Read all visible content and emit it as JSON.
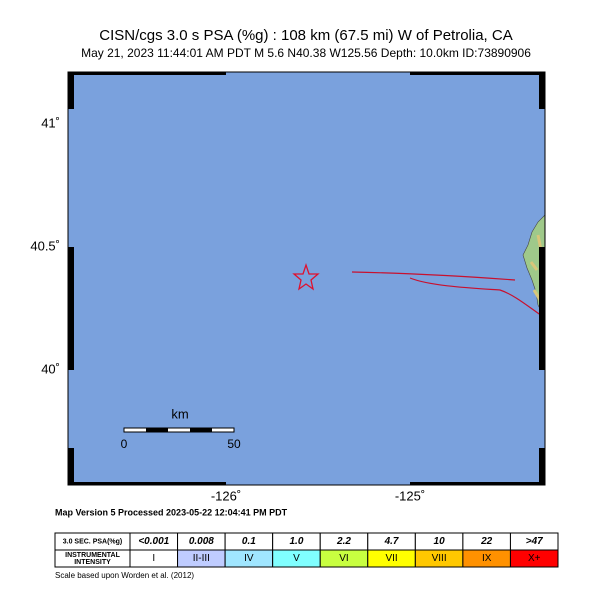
{
  "header": {
    "title": "CISN/cgs 3.0 s PSA (%g) : 108 km (67.5 mi) W of Petrolia, CA",
    "subtitle": "May 21, 2023 11:44:01 AM PDT   M 5.6   N40.38 W125.56   Depth: 10.0km   ID:73890906"
  },
  "map": {
    "lat_labels": [
      "41˚",
      "40.5˚",
      "40˚"
    ],
    "lon_labels": [
      "-126˚",
      "-125˚"
    ],
    "scale_bar": {
      "unit": "km",
      "start": "0",
      "end": "50"
    }
  },
  "version_note": "Map Version 5 Processed 2023-05-22 12:04:41 PM PDT",
  "legend": {
    "psa_label": "3.0 SEC. PSA(%g)",
    "intensity_label": [
      "INSTRUMENTAL",
      "INTENSITY"
    ],
    "columns": [
      {
        "psa": "<0.001",
        "intensity": "I",
        "color": "#ffffff"
      },
      {
        "psa": "0.008",
        "intensity": "II-III",
        "color": "#bfccff"
      },
      {
        "psa": "0.1",
        "intensity": "IV",
        "color": "#a0e6ff"
      },
      {
        "psa": "1.0",
        "intensity": "V",
        "color": "#80ffff"
      },
      {
        "psa": "2.2",
        "intensity": "VI",
        "color": "#c8ff40"
      },
      {
        "psa": "4.7",
        "intensity": "VII",
        "color": "#ffff00"
      },
      {
        "psa": "10",
        "intensity": "VIII",
        "color": "#ffc800"
      },
      {
        "psa": "22",
        "intensity": "IX",
        "color": "#ff9100"
      },
      {
        "psa": ">47",
        "intensity": "X+",
        "color": "#ff0000"
      }
    ],
    "footnote": "Scale based upon Worden et al. (2012)"
  }
}
